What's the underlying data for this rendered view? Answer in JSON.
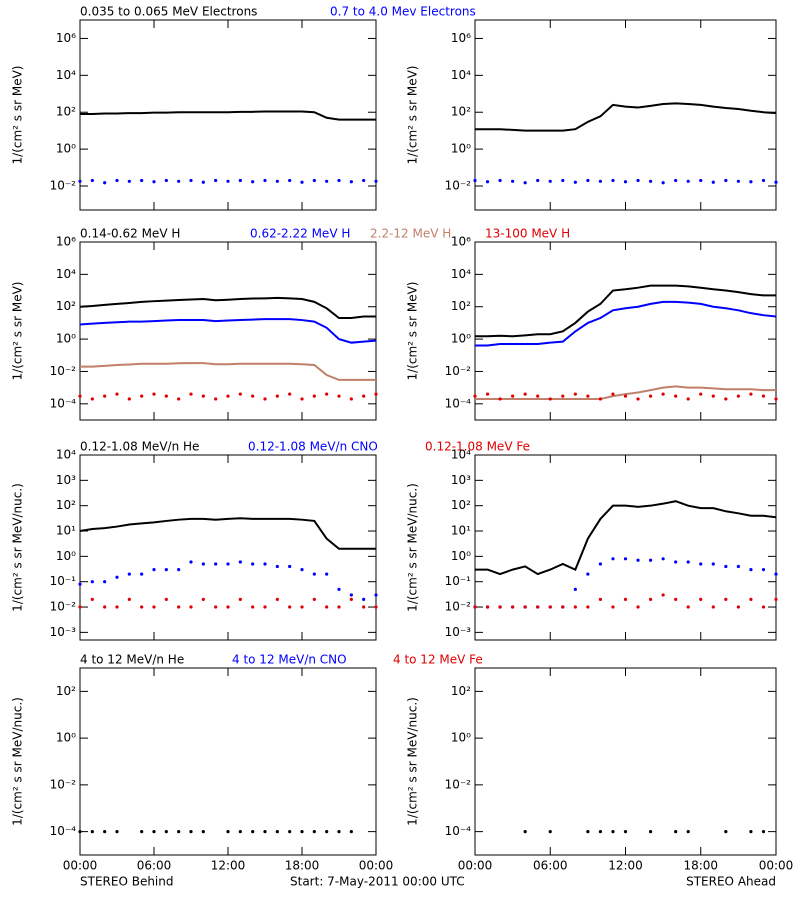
{
  "x_axis": {
    "x": [
      0,
      1,
      2,
      3,
      4,
      5,
      6,
      7,
      8,
      9,
      10,
      11,
      12,
      13,
      14,
      15,
      16,
      17,
      18,
      19,
      20,
      21,
      22,
      23,
      24
    ],
    "xlim": [
      0,
      24
    ],
    "xticks": [
      {
        "value": 0,
        "label": "00:00"
      },
      {
        "value": 6,
        "label": "06:00"
      },
      {
        "value": 12,
        "label": "12:00"
      },
      {
        "value": 18,
        "label": "18:00"
      },
      {
        "value": 24,
        "label": "00:00"
      }
    ]
  },
  "footer": {
    "left": "STEREO Behind",
    "center": "Start:  7-May-2011 00:00 UTC",
    "right": "STEREO Ahead"
  },
  "chart_data": [
    {
      "type": "scatter",
      "log_y": true,
      "ylabel": "1/(cm² s sr MeV)",
      "ylim": [
        0.0005,
        10000000
      ],
      "yticks": [
        {
          "value": 0.01,
          "label": "10⁻²"
        },
        {
          "value": 1,
          "label": "10⁰"
        },
        {
          "value": 100,
          "label": "10²"
        },
        {
          "value": 10000,
          "label": "10⁴"
        },
        {
          "value": 1000000,
          "label": "10⁶"
        }
      ],
      "series": [
        {
          "name": "0.035 to 0.065 MeV Electrons",
          "color": "#000000",
          "marker": "line",
          "behind": [
            80,
            80,
            85,
            85,
            90,
            90,
            95,
            95,
            100,
            100,
            100,
            100,
            100,
            105,
            105,
            110,
            110,
            110,
            110,
            100,
            50,
            40,
            40,
            40,
            40
          ],
          "ahead": [
            12,
            12,
            12,
            11,
            10,
            10,
            10,
            10,
            12,
            30,
            60,
            250,
            200,
            180,
            220,
            280,
            300,
            280,
            250,
            200,
            170,
            150,
            120,
            100,
            90
          ]
        },
        {
          "name": "0.7 to 4.0 Mev Electrons",
          "color": "#0000ff",
          "marker": "dots",
          "behind": [
            0.018,
            0.02,
            0.015,
            0.02,
            0.018,
            0.02,
            0.017,
            0.02,
            0.018,
            0.02,
            0.016,
            0.02,
            0.018,
            0.02,
            0.017,
            0.02,
            0.018,
            0.02,
            0.016,
            0.02,
            0.018,
            0.02,
            0.017,
            0.02,
            0.018
          ],
          "ahead": [
            0.02,
            0.017,
            0.02,
            0.018,
            0.015,
            0.02,
            0.018,
            0.02,
            0.016,
            0.02,
            0.018,
            0.02,
            0.017,
            0.02,
            0.018,
            0.015,
            0.02,
            0.018,
            0.02,
            0.016,
            0.02,
            0.018,
            0.017,
            0.02,
            0.016
          ]
        }
      ]
    },
    {
      "type": "scatter",
      "log_y": true,
      "ylabel": "1/(cm² s sr MeV)",
      "ylim": [
        1e-05,
        1000000
      ],
      "yticks": [
        {
          "value": 0.0001,
          "label": "10⁻⁴"
        },
        {
          "value": 0.01,
          "label": "10⁻²"
        },
        {
          "value": 1,
          "label": "10⁰"
        },
        {
          "value": 100,
          "label": "10²"
        },
        {
          "value": 10000,
          "label": "10⁴"
        },
        {
          "value": 1000000,
          "label": "10⁶"
        }
      ],
      "series": [
        {
          "name": "0.14-0.62 MeV H",
          "color": "#000000",
          "marker": "line",
          "behind": [
            100,
            110,
            130,
            150,
            170,
            200,
            220,
            240,
            260,
            280,
            300,
            250,
            270,
            300,
            320,
            330,
            350,
            330,
            300,
            200,
            80,
            20,
            20,
            25,
            25
          ],
          "ahead": [
            1.5,
            1.5,
            1.6,
            1.5,
            1.7,
            2,
            2,
            3,
            10,
            50,
            150,
            1000,
            1200,
            1500,
            2000,
            2000,
            2000,
            1800,
            1500,
            1200,
            1000,
            800,
            600,
            500,
            500
          ]
        },
        {
          "name": "0.62-2.22 MeV H",
          "color": "#0000ff",
          "marker": "line",
          "behind": [
            8,
            9,
            10,
            11,
            12,
            12,
            13,
            14,
            15,
            15,
            15,
            13,
            14,
            15,
            16,
            17,
            17,
            17,
            15,
            12,
            5,
            1,
            0.6,
            0.7,
            0.8
          ],
          "ahead": [
            0.4,
            0.4,
            0.5,
            0.5,
            0.5,
            0.5,
            0.6,
            0.7,
            3,
            10,
            20,
            60,
            80,
            100,
            150,
            200,
            200,
            180,
            150,
            100,
            80,
            60,
            40,
            30,
            25
          ]
        },
        {
          "name": "2.2-12 MeV H",
          "color": "#c0806a",
          "marker": "line",
          "behind": [
            0.02,
            0.02,
            0.022,
            0.025,
            0.027,
            0.03,
            0.03,
            0.03,
            0.032,
            0.033,
            0.033,
            0.028,
            0.028,
            0.03,
            0.03,
            0.03,
            0.03,
            0.03,
            0.028,
            0.025,
            0.006,
            0.003,
            0.003,
            0.003,
            0.003
          ],
          "ahead": [
            0.0002,
            0.0002,
            0.0002,
            0.0002,
            0.0002,
            0.0002,
            0.0002,
            0.0002,
            0.0002,
            0.0002,
            0.0002,
            0.0003,
            0.0004,
            0.0005,
            0.0007,
            0.001,
            0.0012,
            0.001,
            0.001,
            0.0009,
            0.0008,
            0.0008,
            0.0008,
            0.0007,
            0.0007
          ]
        },
        {
          "name": "13-100 MeV H",
          "color": "#e00000",
          "marker": "dots",
          "behind": [
            0.0003,
            0.0002,
            0.0003,
            0.0004,
            0.0002,
            0.0003,
            0.0004,
            0.0003,
            0.0002,
            0.0004,
            0.0003,
            0.0002,
            0.0003,
            0.0004,
            0.0003,
            0.0002,
            0.0003,
            0.0004,
            0.0002,
            0.0003,
            0.0004,
            0.0003,
            0.0002,
            0.0003,
            0.0004
          ],
          "ahead": [
            0.0003,
            0.0004,
            0.0002,
            0.0003,
            0.0004,
            0.0003,
            0.0002,
            0.0003,
            0.0004,
            0.0003,
            0.0002,
            0.0004,
            0.0003,
            0.0002,
            0.0003,
            0.0004,
            0.0003,
            0.0002,
            0.0004,
            0.0003,
            0.0002,
            0.0003,
            0.0004,
            0.0003,
            0.0002
          ]
        }
      ]
    },
    {
      "type": "scatter",
      "log_y": true,
      "ylabel": "1/(cm² s sr MeV/nuc.)",
      "ylim": [
        0.0005,
        10000
      ],
      "yticks": [
        {
          "value": 0.001,
          "label": "10⁻³"
        },
        {
          "value": 0.01,
          "label": "10⁻²"
        },
        {
          "value": 0.1,
          "label": "10⁻¹"
        },
        {
          "value": 1,
          "label": "10⁰"
        },
        {
          "value": 10,
          "label": "10¹"
        },
        {
          "value": 100,
          "label": "10²"
        },
        {
          "value": 1000,
          "label": "10³"
        },
        {
          "value": 10000,
          "label": "10⁴"
        }
      ],
      "series": [
        {
          "name": "0.12-1.08 MeV/n He",
          "color": "#000000",
          "marker": "line",
          "behind": [
            10,
            12,
            13,
            15,
            18,
            20,
            22,
            25,
            28,
            30,
            30,
            28,
            30,
            32,
            30,
            30,
            30,
            30,
            28,
            25,
            5,
            2,
            2,
            2,
            2
          ],
          "ahead": [
            0.3,
            0.3,
            0.2,
            0.3,
            0.4,
            0.2,
            0.3,
            0.5,
            0.3,
            5,
            30,
            100,
            100,
            90,
            100,
            120,
            150,
            100,
            80,
            80,
            60,
            50,
            40,
            40,
            35
          ]
        },
        {
          "name": "0.12-1.08 MeV/n CNO",
          "color": "#0000ff",
          "marker": "dots",
          "behind": [
            0.08,
            0.1,
            0.1,
            0.15,
            0.2,
            0.2,
            0.3,
            0.3,
            0.3,
            0.6,
            0.5,
            0.5,
            0.5,
            0.6,
            0.5,
            0.5,
            0.4,
            0.4,
            0.3,
            0.2,
            0.2,
            0.05,
            0.03,
            0.02,
            0.03
          ],
          "ahead": [
            0.01,
            0.01,
            0.01,
            0.01,
            0.01,
            0.01,
            0.01,
            0.01,
            0.05,
            0.2,
            0.5,
            0.8,
            0.8,
            0.7,
            0.7,
            0.8,
            0.6,
            0.6,
            0.5,
            0.5,
            0.4,
            0.4,
            0.3,
            0.3,
            0.2
          ]
        },
        {
          "name": "0.12-1.08 MeV Fe",
          "color": "#e00000",
          "marker": "dots",
          "behind": [
            0.01,
            0.02,
            0.01,
            0.01,
            0.02,
            0.01,
            0.01,
            0.02,
            0.01,
            0.01,
            0.02,
            0.01,
            0.01,
            0.02,
            0.01,
            0.01,
            0.02,
            0.01,
            0.01,
            0.02,
            0.01,
            0.01,
            0.02,
            0.01,
            0.01
          ],
          "ahead": [
            0.01,
            0.01,
            0.01,
            0.01,
            0.01,
            0.01,
            0.01,
            0.01,
            0.01,
            0.01,
            0.02,
            0.01,
            0.02,
            0.01,
            0.02,
            0.03,
            0.02,
            0.01,
            0.02,
            0.01,
            0.02,
            0.01,
            0.02,
            0.01,
            0.02
          ]
        }
      ]
    },
    {
      "type": "scatter",
      "log_y": true,
      "ylabel": "1/(cm² s sr MeV/nuc.)",
      "ylim": [
        1e-05,
        1000
      ],
      "yticks": [
        {
          "value": 0.0001,
          "label": "10⁻⁴"
        },
        {
          "value": 0.01,
          "label": "10⁻²"
        },
        {
          "value": 1,
          "label": "10⁰"
        },
        {
          "value": 100,
          "label": "10²"
        }
      ],
      "series": [
        {
          "name": "4 to 12 MeV/n He",
          "color": "#000000",
          "marker": "dots",
          "behind": [
            0.0001,
            0.0001,
            0.0001,
            0.0001,
            null,
            0.0001,
            0.0001,
            0.0001,
            0.0001,
            0.0001,
            0.0001,
            null,
            0.0001,
            0.0001,
            0.0001,
            0.0001,
            0.0001,
            0.0001,
            0.0001,
            0.0001,
            0.0001,
            0.0001,
            0.0001,
            null,
            null
          ],
          "ahead": [
            null,
            null,
            null,
            null,
            0.0001,
            null,
            0.0001,
            null,
            null,
            0.0001,
            0.0001,
            0.0001,
            0.0001,
            null,
            0.0001,
            null,
            0.0001,
            0.0001,
            null,
            null,
            0.0001,
            null,
            0.0001,
            0.0001,
            null
          ]
        },
        {
          "name": "4 to 12 MeV/n CNO",
          "color": "#0000ff",
          "marker": "dots",
          "behind": [
            null,
            null,
            null,
            null,
            null,
            null,
            null,
            null,
            null,
            null,
            null,
            null,
            null,
            null,
            null,
            null,
            null,
            null,
            null,
            null,
            null,
            null,
            null,
            null,
            null
          ],
          "ahead": [
            null,
            null,
            null,
            null,
            null,
            null,
            null,
            null,
            null,
            null,
            null,
            null,
            null,
            null,
            null,
            null,
            null,
            null,
            null,
            null,
            null,
            null,
            null,
            null,
            null
          ]
        },
        {
          "name": "4 to 12 MeV Fe",
          "color": "#e00000",
          "marker": "dots",
          "behind": [
            null,
            null,
            null,
            null,
            null,
            null,
            null,
            null,
            null,
            null,
            null,
            null,
            null,
            null,
            null,
            null,
            null,
            null,
            null,
            null,
            null,
            null,
            null,
            null,
            null
          ],
          "ahead": [
            null,
            null,
            null,
            null,
            null,
            null,
            null,
            null,
            null,
            null,
            null,
            null,
            null,
            null,
            null,
            null,
            null,
            null,
            null,
            null,
            null,
            null,
            null,
            null,
            null
          ]
        }
      ]
    }
  ]
}
